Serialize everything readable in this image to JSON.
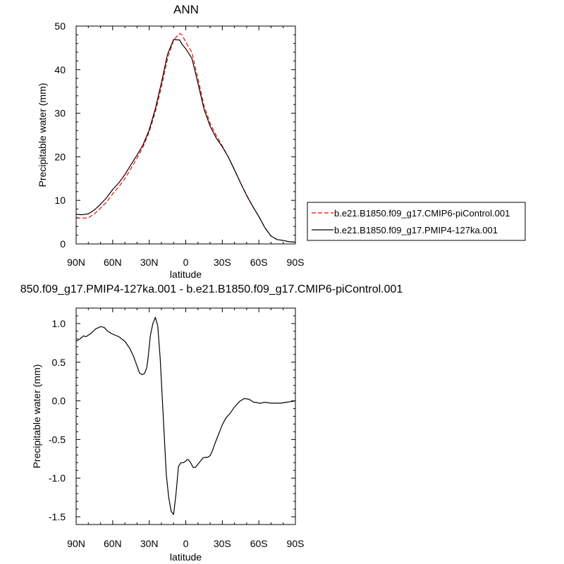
{
  "chart_data": [
    {
      "type": "line",
      "title": "ANN",
      "xlabel": "latitude",
      "ylabel": "Precipitable water (mm)",
      "xlim": [
        90,
        -90
      ],
      "ylim": [
        0,
        50
      ],
      "x_ticks": [
        {
          "value": 90,
          "label": "90N"
        },
        {
          "value": 60,
          "label": "60N"
        },
        {
          "value": 30,
          "label": "30N"
        },
        {
          "value": 0,
          "label": "0"
        },
        {
          "value": -30,
          "label": "30S"
        },
        {
          "value": -60,
          "label": "60S"
        },
        {
          "value": -90,
          "label": "90S"
        }
      ],
      "y_ticks": [
        {
          "value": 0,
          "label": "0"
        },
        {
          "value": 10,
          "label": "10"
        },
        {
          "value": 20,
          "label": "20"
        },
        {
          "value": 30,
          "label": "30"
        },
        {
          "value": 40,
          "label": "40"
        },
        {
          "value": 50,
          "label": "50"
        }
      ],
      "legend_position": "right",
      "series": [
        {
          "name": "b.e21.B1850.f09_g17.CMIP6-piControl.001",
          "color": "#ff0000",
          "dash": "dashed",
          "x": [
            90,
            85,
            80,
            75,
            70,
            65,
            60,
            55,
            50,
            45,
            40,
            35,
            30,
            25,
            20,
            15,
            10,
            5,
            3,
            0,
            -5,
            -10,
            -15,
            -20,
            -25,
            -30,
            -35,
            -40,
            -45,
            -50,
            -55,
            -60,
            -65,
            -70,
            -75,
            -80,
            -85,
            -90
          ],
          "y": [
            6.0,
            5.9,
            6.0,
            6.9,
            8.2,
            9.6,
            11.5,
            13.1,
            15.0,
            17.3,
            19.7,
            22.3,
            25.7,
            30.3,
            36.0,
            42.5,
            46.8,
            48.3,
            48.0,
            46.3,
            44.0,
            38.0,
            31.7,
            27.7,
            24.9,
            22.5,
            19.9,
            17.0,
            14.0,
            11.2,
            8.6,
            6.3,
            3.7,
            1.8,
            1.0,
            0.8,
            0.5,
            0.4
          ]
        },
        {
          "name": "b.e21.B1850.f09_g17.PMIP4-127ka.001",
          "color": "#000000",
          "dash": "solid",
          "x": [
            90,
            85,
            80,
            75,
            70,
            65,
            60,
            55,
            50,
            45,
            40,
            35,
            30,
            25,
            20,
            15,
            10,
            5,
            3,
            0,
            -5,
            -10,
            -15,
            -20,
            -25,
            -30,
            -35,
            -40,
            -45,
            -50,
            -55,
            -60,
            -65,
            -70,
            -75,
            -80,
            -85,
            -90
          ],
          "y": [
            6.8,
            6.7,
            6.9,
            7.8,
            9.1,
            10.6,
            12.5,
            14.0,
            15.9,
            18.2,
            20.4,
            22.8,
            26.2,
            31.0,
            37.0,
            43.5,
            46.9,
            46.8,
            45.8,
            44.8,
            42.6,
            36.9,
            30.9,
            27.0,
            24.3,
            22.3,
            19.9,
            17.0,
            14.0,
            11.1,
            8.6,
            6.3,
            3.7,
            1.8,
            1.0,
            0.8,
            0.5,
            0.4
          ]
        }
      ]
    },
    {
      "type": "line",
      "title": "850.f09_g17.PMIP4-127ka.001 - b.e21.B1850.f09_g17.CMIP6-piControl.001",
      "xlabel": "latitude",
      "ylabel": "Precipitable water (mm)",
      "xlim": [
        90,
        -90
      ],
      "ylim": [
        -1.6,
        1.2
      ],
      "x_ticks": [
        {
          "value": 90,
          "label": "90N"
        },
        {
          "value": 60,
          "label": "60N"
        },
        {
          "value": 30,
          "label": "30N"
        },
        {
          "value": 0,
          "label": "0"
        },
        {
          "value": -30,
          "label": "30S"
        },
        {
          "value": -60,
          "label": "60S"
        },
        {
          "value": -90,
          "label": "90S"
        }
      ],
      "y_ticks": [
        {
          "value": 1.0,
          "label": "1.0"
        },
        {
          "value": 0.5,
          "label": "0.5"
        },
        {
          "value": 0.0,
          "label": "0.0"
        },
        {
          "value": -0.5,
          "label": "-0.5"
        },
        {
          "value": -1.0,
          "label": "-1.0"
        },
        {
          "value": -1.5,
          "label": "-1.5"
        }
      ],
      "series": [
        {
          "color": "#000000",
          "dash": "solid",
          "x": [
            90,
            87,
            84,
            82,
            78,
            74,
            70,
            67,
            64,
            61,
            58,
            55,
            50,
            46,
            43,
            40,
            38,
            36,
            34,
            32,
            31,
            30,
            29,
            27,
            25,
            23,
            21,
            19,
            17,
            16,
            14,
            12,
            10,
            8,
            6,
            4,
            2,
            0,
            -1,
            -2,
            -3,
            -4,
            -5,
            -6,
            -8,
            -10,
            -12,
            -14,
            -16,
            -18,
            -20,
            -22,
            -24,
            -26,
            -28,
            -30,
            -33,
            -36,
            -40,
            -44,
            -48,
            -52,
            -56,
            -58,
            -60,
            -62,
            -64,
            -66,
            -70,
            -74,
            -78,
            -82,
            -86,
            -90
          ],
          "y": [
            0.77,
            0.8,
            0.84,
            0.83,
            0.87,
            0.93,
            0.96,
            0.95,
            0.9,
            0.87,
            0.85,
            0.83,
            0.77,
            0.68,
            0.58,
            0.45,
            0.36,
            0.34,
            0.35,
            0.43,
            0.55,
            0.7,
            0.85,
            1.0,
            1.08,
            0.97,
            0.55,
            -0.05,
            -0.65,
            -0.95,
            -1.25,
            -1.43,
            -1.47,
            -1.2,
            -0.85,
            -0.8,
            -0.8,
            -0.78,
            -0.76,
            -0.76,
            -0.78,
            -0.8,
            -0.83,
            -0.86,
            -0.86,
            -0.82,
            -0.78,
            -0.74,
            -0.73,
            -0.73,
            -0.71,
            -0.64,
            -0.55,
            -0.47,
            -0.39,
            -0.31,
            -0.22,
            -0.17,
            -0.08,
            -0.01,
            0.03,
            0.02,
            -0.02,
            -0.02,
            -0.03,
            -0.03,
            -0.02,
            -0.02,
            -0.03,
            -0.03,
            -0.03,
            -0.02,
            -0.01,
            0.0
          ]
        }
      ]
    }
  ]
}
